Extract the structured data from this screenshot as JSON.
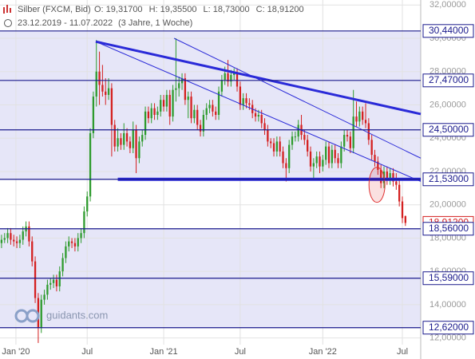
{
  "chart_data": {
    "type": "candlestick",
    "title": "Silber (FXCM, Bid)",
    "stats": [
      "O: 19,31700",
      "H: 19,35500",
      "L: 18,73000",
      "C: 18,91200"
    ],
    "date_range": "23.12.2019 - 11.07.2022",
    "period": "(3 Jahre, 1 Woche)",
    "watermark": "guidants.com",
    "up_color": "#2e9b2e",
    "down_color": "#d42020",
    "level_color": "#1a1a8c",
    "trend_color": "#2a2ad8",
    "band_color": "#e6e6f8",
    "xlim": [
      -0.5,
      137
    ],
    "ylim": [
      11.6,
      32.3
    ],
    "grid": true,
    "xticks": [
      {
        "value": 4.7,
        "label": "Jan '20"
      },
      {
        "value": 28,
        "label": "Jul"
      },
      {
        "value": 53,
        "label": "Jan '21"
      },
      {
        "value": 78,
        "label": "Jul"
      },
      {
        "value": 105,
        "label": "Jan '22"
      },
      {
        "value": 131,
        "label": "Jul"
      }
    ],
    "yticks": [
      {
        "value": 12,
        "label": "12,00000"
      },
      {
        "value": 14,
        "label": "14,00000"
      },
      {
        "value": 16,
        "label": "16,00000"
      },
      {
        "value": 18,
        "label": "18,00000"
      },
      {
        "value": 20,
        "label": "20,00000"
      },
      {
        "value": 22,
        "label": "22,00000"
      },
      {
        "value": 24,
        "label": "24,00000"
      },
      {
        "value": 26,
        "label": "26,00000"
      },
      {
        "value": 28,
        "label": "28,00000"
      },
      {
        "value": 30,
        "label": "30,00000"
      },
      {
        "value": 32,
        "label": "32,00000"
      }
    ],
    "levels": [
      {
        "value": 30.44,
        "label": "30,44000",
        "shade_below": true
      },
      {
        "value": 27.47,
        "label": "27,47000",
        "shade_below": true
      },
      {
        "value": 24.5,
        "label": "24,50000",
        "shade_below": true
      },
      {
        "value": 21.53,
        "label": "21,53000",
        "shade_below": false
      },
      {
        "value": 18.56,
        "label": "18,56000",
        "shade_below": true
      },
      {
        "value": 15.59,
        "label": "15,59000",
        "shade_below": true
      },
      {
        "value": 12.62,
        "label": "12,62000",
        "shade_below": false
      }
    ],
    "last_price": {
      "value": 18.912,
      "label": "18,91200"
    },
    "trendlines": [
      {
        "points": [
          [
            30.8,
            29.8
          ],
          [
            137,
            25.45
          ]
        ],
        "width": 3
      },
      {
        "points": [
          [
            30.8,
            29.8
          ],
          [
            137,
            21.4
          ]
        ],
        "width": 1
      },
      {
        "points": [
          [
            56.4,
            30.0
          ],
          [
            137,
            22.8
          ]
        ],
        "width": 1
      },
      {
        "points": [
          [
            38,
            21.53
          ],
          [
            137,
            21.53
          ]
        ],
        "width": 4
      }
    ],
    "highlight": {
      "center": [
        122.7,
        21.2
      ],
      "color": "#e03030"
    },
    "ohlc": [
      [
        17.7,
        18.2,
        17.4,
        17.9
      ],
      [
        17.9,
        18.3,
        17.7,
        18.0
      ],
      [
        18.0,
        18.6,
        17.7,
        18.3
      ],
      [
        18.3,
        18.6,
        17.6,
        17.9
      ],
      [
        17.9,
        18.2,
        17.5,
        17.8
      ],
      [
        17.8,
        18.1,
        17.4,
        17.7
      ],
      [
        17.7,
        18.2,
        17.4,
        17.9
      ],
      [
        17.9,
        18.7,
        17.6,
        18.4
      ],
      [
        18.4,
        19.0,
        18.1,
        18.7
      ],
      [
        18.7,
        19.0,
        17.5,
        17.8
      ],
      [
        17.8,
        18.1,
        16.3,
        16.6
      ],
      [
        16.6,
        16.9,
        14.1,
        14.4
      ],
      [
        14.4,
        14.7,
        11.7,
        12.6
      ],
      [
        12.6,
        14.6,
        12.3,
        14.3
      ],
      [
        14.3,
        14.9,
        14.0,
        14.6
      ],
      [
        14.6,
        15.5,
        14.3,
        15.2
      ],
      [
        15.2,
        15.6,
        14.9,
        15.3
      ],
      [
        15.3,
        15.8,
        15.0,
        15.5
      ],
      [
        15.5,
        15.8,
        14.8,
        15.1
      ],
      [
        15.1,
        16.3,
        14.8,
        16.0
      ],
      [
        16.0,
        17.1,
        15.7,
        16.8
      ],
      [
        16.8,
        17.8,
        16.5,
        17.5
      ],
      [
        17.5,
        18.1,
        17.2,
        17.8
      ],
      [
        17.8,
        18.0,
        17.4,
        17.7
      ],
      [
        17.7,
        18.0,
        17.2,
        17.5
      ],
      [
        17.5,
        18.3,
        17.2,
        18.0
      ],
      [
        18.0,
        18.6,
        17.7,
        18.3
      ],
      [
        18.3,
        19.9,
        18.0,
        19.6
      ],
      [
        19.6,
        20.8,
        19.3,
        20.5
      ],
      [
        20.5,
        24.6,
        20.2,
        24.3
      ],
      [
        24.3,
        26.8,
        24.0,
        26.5
      ],
      [
        26.5,
        29.9,
        25.9,
        28.0
      ],
      [
        28.0,
        29.2,
        26.0,
        27.2
      ],
      [
        27.2,
        28.4,
        26.5,
        26.8
      ],
      [
        26.8,
        27.6,
        26.0,
        26.6
      ],
      [
        26.6,
        27.6,
        26.3,
        27.0
      ],
      [
        27.0,
        27.3,
        22.9,
        24.8
      ],
      [
        24.8,
        25.1,
        23.2,
        23.5
      ],
      [
        23.5,
        24.6,
        23.2,
        24.0
      ],
      [
        24.0,
        24.3,
        23.3,
        23.6
      ],
      [
        23.6,
        24.9,
        23.3,
        24.3
      ],
      [
        24.3,
        24.6,
        23.5,
        23.8
      ],
      [
        23.8,
        24.1,
        23.1,
        23.4
      ],
      [
        23.4,
        25.0,
        23.1,
        24.5
      ],
      [
        24.5,
        24.8,
        21.9,
        22.8
      ],
      [
        22.8,
        24.1,
        22.5,
        23.8
      ],
      [
        23.8,
        24.5,
        23.5,
        24.2
      ],
      [
        24.2,
        25.9,
        23.9,
        25.6
      ],
      [
        25.6,
        25.9,
        24.9,
        25.2
      ],
      [
        25.2,
        26.1,
        24.9,
        25.8
      ],
      [
        25.8,
        26.1,
        25.1,
        25.4
      ],
      [
        25.4,
        25.9,
        25.1,
        25.6
      ],
      [
        25.6,
        26.6,
        25.3,
        26.3
      ],
      [
        26.3,
        26.6,
        25.6,
        25.9
      ],
      [
        25.9,
        26.9,
        25.6,
        26.6
      ],
      [
        26.6,
        26.9,
        24.8,
        25.3
      ],
      [
        25.3,
        27.2,
        25.0,
        26.9
      ],
      [
        26.9,
        30.0,
        26.2,
        27.0
      ],
      [
        27.0,
        27.7,
        26.5,
        27.3
      ],
      [
        27.3,
        27.9,
        26.9,
        27.6
      ],
      [
        27.6,
        27.9,
        26.0,
        26.3
      ],
      [
        26.3,
        26.8,
        25.2,
        26.5
      ],
      [
        26.5,
        26.8,
        24.9,
        25.2
      ],
      [
        25.2,
        26.0,
        24.9,
        25.7
      ],
      [
        25.7,
        26.0,
        24.5,
        24.8
      ],
      [
        24.8,
        25.1,
        24.1,
        24.4
      ],
      [
        24.4,
        25.7,
        24.1,
        25.4
      ],
      [
        25.4,
        26.1,
        25.1,
        25.8
      ],
      [
        25.8,
        26.3,
        25.5,
        26.0
      ],
      [
        26.0,
        26.3,
        25.3,
        25.6
      ],
      [
        25.6,
        25.9,
        25.1,
        25.4
      ],
      [
        25.4,
        27.1,
        25.1,
        26.8
      ],
      [
        26.8,
        27.8,
        26.5,
        27.5
      ],
      [
        27.5,
        28.3,
        27.2,
        27.9
      ],
      [
        27.9,
        28.7,
        27.1,
        27.4
      ],
      [
        27.4,
        28.1,
        27.1,
        27.8
      ],
      [
        27.8,
        28.2,
        27.5,
        27.9
      ],
      [
        27.9,
        28.2,
        26.8,
        27.1
      ],
      [
        27.1,
        27.4,
        25.7,
        26.0
      ],
      [
        26.0,
        26.7,
        25.7,
        26.4
      ],
      [
        26.4,
        26.7,
        25.8,
        26.1
      ],
      [
        26.1,
        26.4,
        25.7,
        26.0
      ],
      [
        26.0,
        26.3,
        25.2,
        25.5
      ],
      [
        25.5,
        25.8,
        25.0,
        25.3
      ],
      [
        25.3,
        25.7,
        25.0,
        25.4
      ],
      [
        25.4,
        25.7,
        24.6,
        24.9
      ],
      [
        24.9,
        25.2,
        24.2,
        24.5
      ],
      [
        24.5,
        24.8,
        23.5,
        23.8
      ],
      [
        23.8,
        24.0,
        23.4,
        23.7
      ],
      [
        23.7,
        24.0,
        22.9,
        23.2
      ],
      [
        23.2,
        24.1,
        22.9,
        23.8
      ],
      [
        23.8,
        24.1,
        22.9,
        23.2
      ],
      [
        23.2,
        23.5,
        22.2,
        22.5
      ],
      [
        22.5,
        22.8,
        21.4,
        22.2
      ],
      [
        22.2,
        23.9,
        21.9,
        23.6
      ],
      [
        23.6,
        24.4,
        23.3,
        24.1
      ],
      [
        24.1,
        24.4,
        23.8,
        24.1
      ],
      [
        24.1,
        25.1,
        23.8,
        24.8
      ],
      [
        24.8,
        25.4,
        23.9,
        24.2
      ],
      [
        24.2,
        24.5,
        23.6,
        23.9
      ],
      [
        23.9,
        24.2,
        22.9,
        23.2
      ],
      [
        23.2,
        23.5,
        22.0,
        22.3
      ],
      [
        22.3,
        22.8,
        21.6,
        22.5
      ],
      [
        22.5,
        23.2,
        22.2,
        22.9
      ],
      [
        22.9,
        23.2,
        21.9,
        22.3
      ],
      [
        22.3,
        23.0,
        22.0,
        22.7
      ],
      [
        22.7,
        23.8,
        22.4,
        23.5
      ],
      [
        23.5,
        23.8,
        22.2,
        22.5
      ],
      [
        22.5,
        23.6,
        22.2,
        23.3
      ],
      [
        23.3,
        23.6,
        22.5,
        22.8
      ],
      [
        22.8,
        23.1,
        22.2,
        22.5
      ],
      [
        22.5,
        23.8,
        22.2,
        23.5
      ],
      [
        23.5,
        24.5,
        23.2,
        24.2
      ],
      [
        24.2,
        24.5,
        23.8,
        24.1
      ],
      [
        24.1,
        24.4,
        23.1,
        23.4
      ],
      [
        23.4,
        26.9,
        23.1,
        25.3
      ],
      [
        25.3,
        26.2,
        24.7,
        25.0
      ],
      [
        25.0,
        25.9,
        24.7,
        25.6
      ],
      [
        25.6,
        25.9,
        24.8,
        25.1
      ],
      [
        25.1,
        26.1,
        24.6,
        24.9
      ],
      [
        24.9,
        25.2,
        23.6,
        23.9
      ],
      [
        23.9,
        24.2,
        22.7,
        23.0
      ],
      [
        23.0,
        23.3,
        22.3,
        22.6
      ],
      [
        22.6,
        22.9,
        21.8,
        22.1
      ],
      [
        22.1,
        22.4,
        21.0,
        21.3
      ],
      [
        21.3,
        22.3,
        21.0,
        22.0
      ],
      [
        22.0,
        22.3,
        21.2,
        21.5
      ],
      [
        21.5,
        22.2,
        21.2,
        21.9
      ],
      [
        21.9,
        22.2,
        21.1,
        21.4
      ],
      [
        21.4,
        21.9,
        20.9,
        21.2
      ],
      [
        21.2,
        21.5,
        19.9,
        20.2
      ],
      [
        20.2,
        20.5,
        18.9,
        19.2
      ],
      [
        19.317,
        19.355,
        18.73,
        18.912
      ]
    ]
  }
}
